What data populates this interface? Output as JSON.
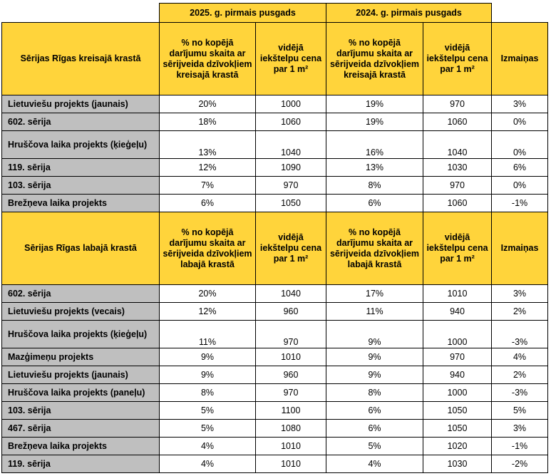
{
  "period_2025": "2025. g. pirmais pusgads",
  "period_2024": "2024. g. pirmais pusgads",
  "left": {
    "title": "Sērijas Rīgas kreisajā krastā",
    "share_header_2025": "% no kopējā darījumu skaita ar sērijveida dzīvokļiem kreisajā krastā",
    "price_header_2025": "vidējā iekštelpu cena par 1 m²",
    "share_header_2024": "% no kopējā darījumu skaita ar sērijveida dzīvokļiem kreisajā krastā",
    "price_header_2024": "vidējā iekštelpu cena par 1 m²",
    "change_header": "Izmaiņas",
    "rows": [
      {
        "name": "Lietuviešu projekts (jaunais)",
        "share2025": "20%",
        "price2025": "1000",
        "share2024": "19%",
        "price2024": "970",
        "change": "3%"
      },
      {
        "name": "602. sērija",
        "share2025": "18%",
        "price2025": "1060",
        "share2024": "19%",
        "price2024": "1060",
        "change": "0%"
      },
      {
        "name": "Hruščova laika projekts (ķieģeļu)",
        "share2025": "13%",
        "price2025": "1040",
        "share2024": "16%",
        "price2024": "1040",
        "change": "0%"
      },
      {
        "name": "119. sērija",
        "share2025": "12%",
        "price2025": "1090",
        "share2024": "13%",
        "price2024": "1030",
        "change": "6%"
      },
      {
        "name": "103. sērija",
        "share2025": "7%",
        "price2025": "970",
        "share2024": "8%",
        "price2024": "970",
        "change": "0%"
      },
      {
        "name": "Brežņeva laika projekts",
        "share2025": "6%",
        "price2025": "1050",
        "share2024": "6%",
        "price2024": "1060",
        "change": "-1%"
      }
    ]
  },
  "right": {
    "title": "Sērijas Rīgas labajā krastā",
    "share_header_2025": "% no kopējā darījumu skaita ar sērijveida dzīvokļiem labajā krastā",
    "price_header_2025": "vidējā iekštelpu cena par 1 m²",
    "share_header_2024": "% no kopējā darījumu skaita ar sērijveida dzīvokļiem labajā krastā",
    "price_header_2024": "vidējā iekštelpu cena par 1 m²",
    "change_header": "Izmaiņas",
    "rows": [
      {
        "name": "602. sērija",
        "share2025": "20%",
        "price2025": "1040",
        "share2024": "17%",
        "price2024": "1010",
        "change": "3%"
      },
      {
        "name": "Lietuviešu projekts (vecais)",
        "share2025": "12%",
        "price2025": "960",
        "share2024": "11%",
        "price2024": "940",
        "change": "2%"
      },
      {
        "name": "Hruščova laika projekts (ķieģeļu)",
        "share2025": "11%",
        "price2025": "970",
        "share2024": "9%",
        "price2024": "1000",
        "change": "-3%"
      },
      {
        "name": "Mazģimeņu projekts",
        "share2025": "9%",
        "price2025": "1010",
        "share2024": "9%",
        "price2024": "970",
        "change": "4%"
      },
      {
        "name": "Lietuviešu projekts (jaunais)",
        "share2025": "9%",
        "price2025": "960",
        "share2024": "9%",
        "price2024": "940",
        "change": "2%"
      },
      {
        "name": "Hruščova laika projekts (paneļu)",
        "share2025": "8%",
        "price2025": "970",
        "share2024": "8%",
        "price2024": "1000",
        "change": "-3%"
      },
      {
        "name": "103. sērija",
        "share2025": "5%",
        "price2025": "1100",
        "share2024": "6%",
        "price2024": "1050",
        "change": "5%"
      },
      {
        "name": "467. sērija",
        "share2025": "5%",
        "price2025": "1080",
        "share2024": "6%",
        "price2024": "1050",
        "change": "3%"
      },
      {
        "name": "Brežņeva laika projekts",
        "share2025": "4%",
        "price2025": "1010",
        "share2024": "5%",
        "price2024": "1020",
        "change": "-1%"
      },
      {
        "name": "119. sērija",
        "share2025": "4%",
        "price2025": "1010",
        "share2024": "4%",
        "price2024": "1030",
        "change": "-2%"
      }
    ]
  }
}
